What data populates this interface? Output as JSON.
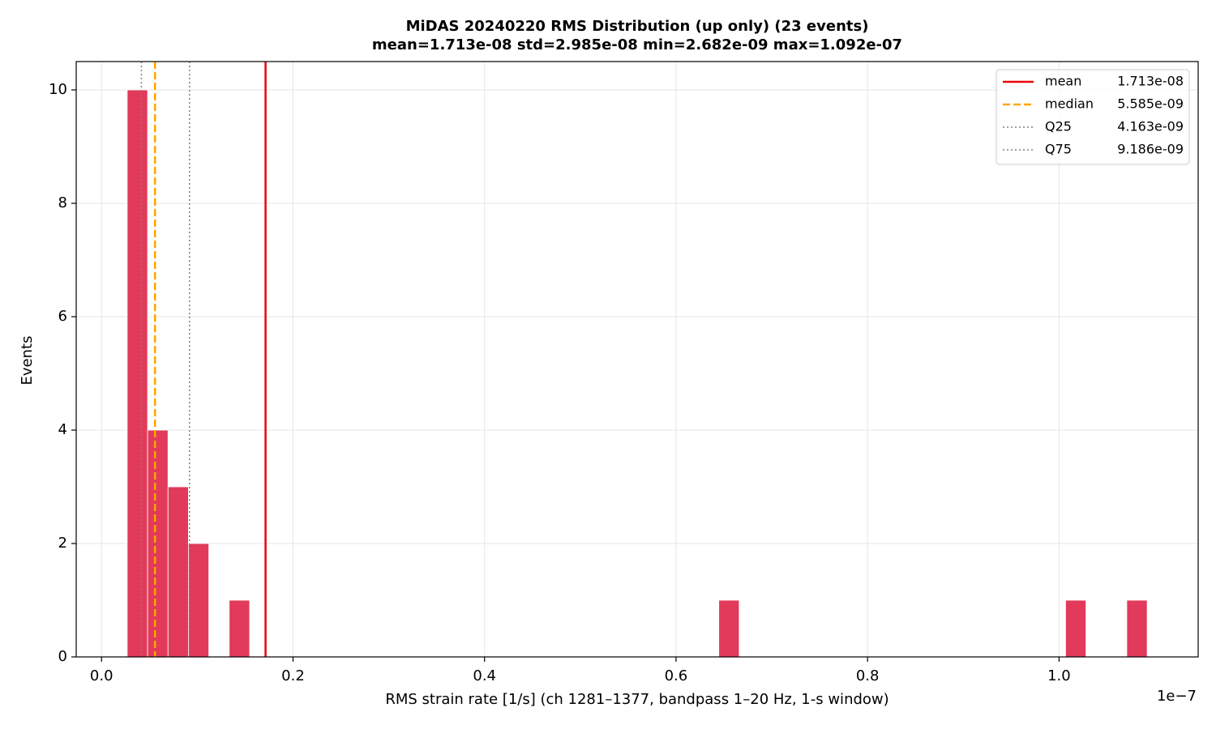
{
  "chart_data": {
    "type": "histogram",
    "title": "MiDAS 20240220  RMS Distribution  (up only)  (23 events)",
    "subtitle": "mean=1.713e-08  std=2.985e-08  min=2.682e-09  max=1.092e-07",
    "x_label": "RMS strain rate [1/s]  (ch 1281–1377, bandpass 1–20 Hz, 1-s window)",
    "x_offset_label": "1e−7",
    "y_label": "Events",
    "color": "#e13a5a",
    "bins": [
      2.682e-09,
      4.8124e-09,
      6.9428e-09,
      9.0732e-09,
      1.12036e-08,
      1.3334e-08,
      1.54644e-08,
      1.75948e-08,
      1.97252e-08,
      2.18556e-08,
      2.3986e-08,
      2.61164e-08,
      2.82468e-08,
      3.03772e-08,
      3.25076e-08,
      3.4638e-08,
      3.67684e-08,
      3.88988e-08,
      4.10292e-08,
      4.31596e-08,
      4.529e-08,
      4.74204e-08,
      4.95508e-08,
      5.16812e-08,
      5.38116e-08,
      5.5942e-08,
      5.80724e-08,
      6.02028e-08,
      6.23332e-08,
      6.44636e-08,
      6.6594e-08,
      6.87244e-08,
      7.08548e-08,
      7.29852e-08,
      7.51156e-08,
      7.7246e-08,
      7.93764e-08,
      8.15068e-08,
      8.36372e-08,
      8.57676e-08,
      8.7898e-08,
      9.00284e-08,
      9.21588e-08,
      9.42892e-08,
      9.64196e-08,
      9.855e-08,
      1.006804e-07,
      1.028108e-07,
      1.049412e-07,
      1.070716e-07,
      1.09202e-07
    ],
    "values": [
      10,
      4,
      3,
      2,
      0,
      1,
      0,
      0,
      0,
      0,
      0,
      0,
      0,
      0,
      0,
      0,
      0,
      0,
      0,
      0,
      0,
      0,
      0,
      0,
      0,
      0,
      0,
      0,
      0,
      1,
      0,
      0,
      0,
      0,
      0,
      0,
      0,
      0,
      0,
      0,
      0,
      0,
      0,
      0,
      0,
      0,
      1,
      0,
      0,
      1
    ],
    "reference_lines": [
      {
        "name": "mean",
        "label": "1.713e-08",
        "value": 1.713e-08,
        "color": "#e8000b",
        "style": "solid"
      },
      {
        "name": "median",
        "label": "5.585e-09",
        "value": 5.585e-09,
        "color": "#ffa500",
        "style": "dashed"
      },
      {
        "name": "Q25",
        "label": "4.163e-09",
        "value": 4.163e-09,
        "color": "#808080",
        "style": "dotted"
      },
      {
        "name": "Q75",
        "label": "9.186e-09",
        "value": 9.186e-09,
        "color": "#808080",
        "style": "dotted"
      }
    ],
    "xlim": [
      -2.644e-09,
      1.14526e-07
    ],
    "xticks": [
      {
        "value": 0,
        "label": "0.0"
      },
      {
        "value": 2e-08,
        "label": "0.2"
      },
      {
        "value": 4e-08,
        "label": "0.4"
      },
      {
        "value": 6e-08,
        "label": "0.6"
      },
      {
        "value": 8e-08,
        "label": "0.8"
      },
      {
        "value": 1e-07,
        "label": "1.0"
      }
    ],
    "ylim": [
      0,
      10.5
    ],
    "yticks": [
      0,
      2,
      4,
      6,
      8,
      10
    ],
    "grid": true,
    "legend": "upper right"
  }
}
